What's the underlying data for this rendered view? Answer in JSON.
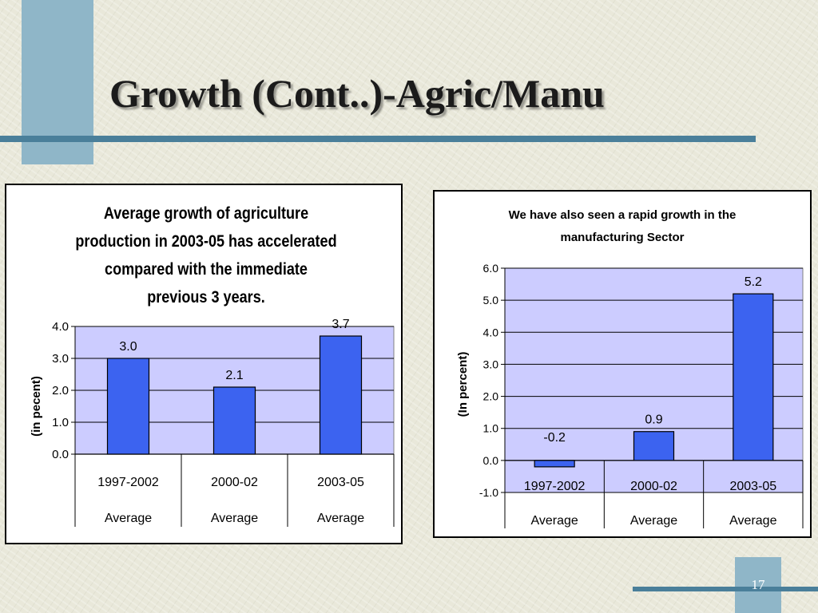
{
  "slide": {
    "title": "Growth (Cont..)-Agric/Manu",
    "page_number": "17"
  },
  "chart_data": [
    {
      "type": "bar",
      "title": "Average growth of agriculture production in 2003-05 has accelerated compared with the immediate previous 3 years.",
      "title_lines": [
        "Average growth of agriculture",
        "production in 2003-05 has accelerated",
        "compared with the immediate",
        "previous 3 years."
      ],
      "categories": [
        [
          "1997-2002",
          "Average"
        ],
        [
          "2000-02",
          "Average"
        ],
        [
          "2003-05",
          "Average"
        ]
      ],
      "values": [
        3.0,
        2.1,
        3.7
      ],
      "value_labels": [
        "3.0",
        "2.1",
        "3.7"
      ],
      "ylabel": "(in pecent)",
      "ylim": [
        0,
        4.0
      ],
      "yticks": [
        "0.0",
        "1.0",
        "2.0",
        "3.0",
        "4.0"
      ],
      "grid": true,
      "bar_color": "#3c63f0",
      "plot_bg": "#ccccff"
    },
    {
      "type": "bar",
      "title": "We have also seen a rapid growth in the manufacturing Sector",
      "title_lines": [
        "We have also seen a rapid growth in the",
        "manufacturing Sector"
      ],
      "categories": [
        [
          "1997-2002",
          "Average"
        ],
        [
          "2000-02",
          "Average"
        ],
        [
          "2003-05",
          "Average"
        ]
      ],
      "values": [
        -0.2,
        0.9,
        5.2
      ],
      "value_labels": [
        "-0.2",
        "0.9",
        "5.2"
      ],
      "ylabel": "(In percent)",
      "ylim": [
        -1.0,
        6.0
      ],
      "yticks": [
        "-1.0",
        "0.0",
        "1.0",
        "2.0",
        "3.0",
        "4.0",
        "5.0",
        "6.0"
      ],
      "grid": true,
      "bar_color": "#3c63f0",
      "plot_bg": "#ccccff"
    }
  ]
}
